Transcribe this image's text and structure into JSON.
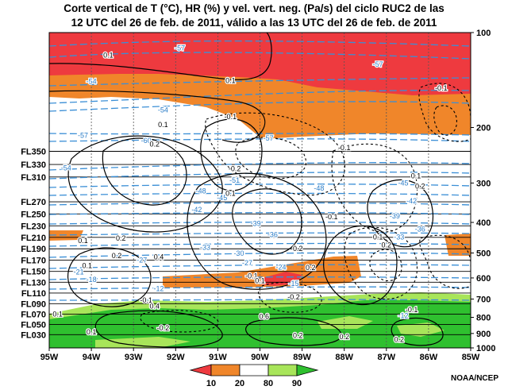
{
  "title": {
    "line1": "Corte vertical de T (°C), HR (%) y vel. vert. neg. (Pa/s) del ciclo RUC2 de las",
    "line2": "12 UTC del 26 de feb. de 2011, válido a las 13 UTC del 26 de feb. de 2011"
  },
  "credit": "NOAA/NCEP",
  "chart_data": {
    "type": "heatmap",
    "title": "Corte vertical de T (°C), HR (%) y vel. vert. neg. (Pa/s) del ciclo RUC2 de las 12 UTC del 26 de feb. de 2011, válido a las 13 UTC del 26 de feb. de 2011",
    "x_ticks": [
      "95W",
      "94W",
      "93W",
      "92W",
      "91W",
      "90W",
      "89W",
      "88W",
      "87W",
      "86W",
      "85W"
    ],
    "x_range": [
      -95,
      -85
    ],
    "y_right_label_values": [
      100,
      200,
      300,
      400,
      500,
      600,
      700,
      800,
      900,
      1000
    ],
    "y_range_hPa": [
      1000,
      100
    ],
    "y_scale": "log-pressure",
    "flight_levels": [
      {
        "label": "FL350",
        "hPa": 238
      },
      {
        "label": "FL330",
        "hPa": 262
      },
      {
        "label": "FL310",
        "hPa": 287
      },
      {
        "label": "FL270",
        "hPa": 344
      },
      {
        "label": "FL250",
        "hPa": 376
      },
      {
        "label": "FL230",
        "hPa": 410
      },
      {
        "label": "FL210",
        "hPa": 446
      },
      {
        "label": "FL190",
        "hPa": 485
      },
      {
        "label": "FL170",
        "hPa": 527
      },
      {
        "label": "FL150",
        "hPa": 572
      },
      {
        "label": "FL130",
        "hPa": 619
      },
      {
        "label": "FL110",
        "hPa": 670
      },
      {
        "label": "FL090",
        "hPa": 724
      },
      {
        "label": "FL070",
        "hPa": 782
      },
      {
        "label": "FL050",
        "hPa": 843
      },
      {
        "label": "FL030",
        "hPa": 908
      }
    ],
    "legend": {
      "labels": [
        "10",
        "20",
        "80",
        "90"
      ],
      "colors": [
        "#ee3a3f",
        "#f0862a",
        "#ffffff",
        "#a8e55a",
        "#2fc02f"
      ]
    },
    "temperature_labels": [
      {
        "text": "-57",
        "lon": -91.9,
        "hPa": 112
      },
      {
        "text": "-57",
        "lon": -87.2,
        "hPa": 126
      },
      {
        "text": "-54",
        "lon": -94.0,
        "hPa": 143
      },
      {
        "text": "-54",
        "lon": -92.3,
        "hPa": 176
      },
      {
        "text": "-57",
        "lon": -94.2,
        "hPa": 212
      },
      {
        "text": "-60",
        "lon": -92.7,
        "hPa": 220
      },
      {
        "text": "-57",
        "lon": -89.8,
        "hPa": 216
      },
      {
        "text": "-54",
        "lon": -94.6,
        "hPa": 269
      },
      {
        "text": "-51",
        "lon": -90.6,
        "hPa": 294
      },
      {
        "text": "-48",
        "lon": -91.4,
        "hPa": 318
      },
      {
        "text": "-45",
        "lon": -90.9,
        "hPa": 334
      },
      {
        "text": "-42",
        "lon": -91.5,
        "hPa": 365
      },
      {
        "text": "-39",
        "lon": -90.1,
        "hPa": 403
      },
      {
        "text": "-36",
        "lon": -89.7,
        "hPa": 437
      },
      {
        "text": "-33",
        "lon": -91.3,
        "hPa": 480
      },
      {
        "text": "-30",
        "lon": -90.5,
        "hPa": 502
      },
      {
        "text": "-27",
        "lon": -92.8,
        "hPa": 527
      },
      {
        "text": "-27",
        "lon": -90.3,
        "hPa": 537
      },
      {
        "text": "-24",
        "lon": -89.5,
        "hPa": 555
      },
      {
        "text": "-21",
        "lon": -94.3,
        "hPa": 575
      },
      {
        "text": "-18",
        "lon": -94.0,
        "hPa": 608
      },
      {
        "text": "-15",
        "lon": -89.2,
        "hPa": 625
      },
      {
        "text": "-12",
        "lon": -92.4,
        "hPa": 650
      },
      {
        "text": "-48",
        "lon": -88.6,
        "hPa": 312
      },
      {
        "text": "-45",
        "lon": -86.6,
        "hPa": 300
      },
      {
        "text": "-42",
        "lon": -86.4,
        "hPa": 342
      },
      {
        "text": "-39",
        "lon": -86.8,
        "hPa": 382
      },
      {
        "text": "-36",
        "lon": -86.2,
        "hPa": 420
      },
      {
        "text": "-33",
        "lon": -86.7,
        "hPa": 445
      },
      {
        "text": "-12",
        "lon": -86.6,
        "hPa": 790
      }
    ],
    "vertical_velocity_labels": [
      {
        "text": "0.1",
        "lon": -93.6,
        "hPa": 118
      },
      {
        "text": "0.1",
        "lon": -90.7,
        "hPa": 142
      },
      {
        "text": "-0.1",
        "lon": -85.7,
        "hPa": 150
      },
      {
        "text": "-0.1",
        "lon": -90.7,
        "hPa": 185
      },
      {
        "text": "0.1",
        "lon": -92.3,
        "hPa": 196
      },
      {
        "text": "0.2",
        "lon": -92.5,
        "hPa": 226
      },
      {
        "text": "-0.1",
        "lon": -88.0,
        "hPa": 232
      },
      {
        "text": "-0.2",
        "lon": -90.6,
        "hPa": 270
      },
      {
        "text": "0.1",
        "lon": -86.3,
        "hPa": 285
      },
      {
        "text": "0.2",
        "lon": -86.2,
        "hPa": 307
      },
      {
        "text": "0.1",
        "lon": -90.7,
        "hPa": 324
      },
      {
        "text": "-0.1",
        "lon": -88.3,
        "hPa": 384
      },
      {
        "text": "0.1",
        "lon": -94.2,
        "hPa": 457
      },
      {
        "text": "0.2",
        "lon": -93.3,
        "hPa": 449
      },
      {
        "text": "0.1",
        "lon": -87.2,
        "hPa": 445
      },
      {
        "text": "0.2",
        "lon": -87.0,
        "hPa": 472
      },
      {
        "text": "0.2",
        "lon": -89.1,
        "hPa": 484
      },
      {
        "text": "0.4",
        "lon": -92.4,
        "hPa": 514
      },
      {
        "text": "0.2",
        "lon": -93.4,
        "hPa": 510
      },
      {
        "text": "0.1",
        "lon": -94.1,
        "hPa": 548
      },
      {
        "text": "0.2",
        "lon": -88.8,
        "hPa": 556
      },
      {
        "text": "-0.1",
        "lon": -90.2,
        "hPa": 591
      },
      {
        "text": "0.1",
        "lon": -90.0,
        "hPa": 613
      },
      {
        "text": "-0.2",
        "lon": -89.2,
        "hPa": 690
      },
      {
        "text": "-0.1",
        "lon": -92.7,
        "hPa": 706
      },
      {
        "text": "0.4",
        "lon": -92.5,
        "hPa": 738
      },
      {
        "text": "0.6",
        "lon": -89.9,
        "hPa": 795
      },
      {
        "text": "0.1",
        "lon": -94.8,
        "hPa": 782
      },
      {
        "text": "-0.2",
        "lon": -92.3,
        "hPa": 864
      },
      {
        "text": "0.1",
        "lon": -94.0,
        "hPa": 890
      },
      {
        "text": "0.2",
        "lon": -89.1,
        "hPa": 914
      },
      {
        "text": "0.2",
        "lon": -88.0,
        "hPa": 922
      },
      {
        "text": "0.2",
        "lon": -86.7,
        "hPa": 940
      },
      {
        "text": "-0.1",
        "lon": -86.4,
        "hPa": 757
      }
    ]
  }
}
